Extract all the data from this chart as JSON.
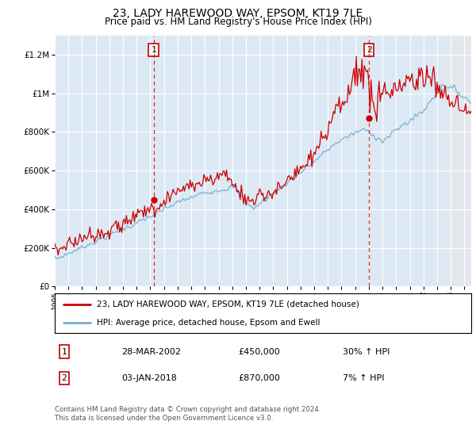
{
  "title": "23, LADY HAREWOOD WAY, EPSOM, KT19 7LE",
  "subtitle": "Price paid vs. HM Land Registry's House Price Index (HPI)",
  "bg_color": "#dce9f5",
  "hpi_color": "#7aafd4",
  "price_color": "#cc0000",
  "sale1_date": 2002.24,
  "sale1_price": 450000,
  "sale2_date": 2018.01,
  "sale2_price": 870000,
  "xmin": 1995,
  "xmax": 2025.5,
  "ymin": 0,
  "ymax": 1300000,
  "legend_line1": "23, LADY HAREWOOD WAY, EPSOM, KT19 7LE (detached house)",
  "legend_line2": "HPI: Average price, detached house, Epsom and Ewell",
  "table_row1_num": "1",
  "table_row1_date": "28-MAR-2002",
  "table_row1_price": "£450,000",
  "table_row1_hpi": "30% ↑ HPI",
  "table_row2_num": "2",
  "table_row2_date": "03-JAN-2018",
  "table_row2_price": "£870,000",
  "table_row2_hpi": "7% ↑ HPI",
  "footer": "Contains HM Land Registry data © Crown copyright and database right 2024.\nThis data is licensed under the Open Government Licence v3.0."
}
